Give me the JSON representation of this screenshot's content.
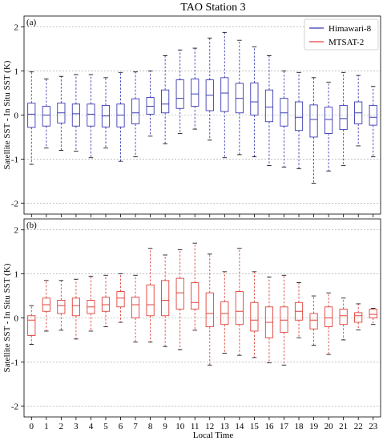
{
  "chart_data": [
    {
      "type": "box",
      "panel_label": "(a)",
      "title": "TAO Station 3",
      "xlabel": "",
      "ylabel": "Satellite SST - In Situ SST (K)",
      "ylim": [
        -2.25,
        2.25
      ],
      "yticks": [
        -2,
        -1,
        0,
        1,
        2
      ],
      "grid": "horizontal dashed",
      "legend": {
        "placement": "top-right",
        "entries": [
          {
            "name": "Himawari-8",
            "color": "#3b3bb5"
          },
          {
            "name": "MTSAT-2",
            "color": "#e0413a"
          }
        ]
      },
      "categories": [
        "0",
        "1",
        "2",
        "3",
        "4",
        "5",
        "6",
        "7",
        "8",
        "9",
        "10",
        "11",
        "12",
        "13",
        "14",
        "15",
        "16",
        "17",
        "18",
        "19",
        "20",
        "21",
        "22",
        "23"
      ],
      "series": [
        {
          "name": "Himawari-8",
          "color": "#3b3bb5",
          "boxes": [
            {
              "low": -1.12,
              "q1": -0.28,
              "median": 0.02,
              "q3": 0.27,
              "high": 0.98
            },
            {
              "low": -0.75,
              "q1": -0.25,
              "median": 0.0,
              "q3": 0.2,
              "high": 0.82
            },
            {
              "low": -0.8,
              "q1": -0.18,
              "median": 0.05,
              "q3": 0.27,
              "high": 0.88
            },
            {
              "low": -0.82,
              "q1": -0.25,
              "median": 0.03,
              "q3": 0.25,
              "high": 0.92
            },
            {
              "low": -0.97,
              "q1": -0.25,
              "median": 0.02,
              "q3": 0.25,
              "high": 0.92
            },
            {
              "low": -0.75,
              "q1": -0.27,
              "median": -0.02,
              "q3": 0.22,
              "high": 0.85
            },
            {
              "low": -1.05,
              "q1": -0.27,
              "median": 0.0,
              "q3": 0.25,
              "high": 0.97
            },
            {
              "low": -0.95,
              "q1": -0.2,
              "median": 0.05,
              "q3": 0.37,
              "high": 0.98
            },
            {
              "low": -0.48,
              "q1": 0.02,
              "median": 0.2,
              "q3": 0.4,
              "high": 1.0
            },
            {
              "low": -0.65,
              "q1": 0.05,
              "median": 0.25,
              "q3": 0.57,
              "high": 1.35
            },
            {
              "low": -0.42,
              "q1": 0.15,
              "median": 0.38,
              "q3": 0.8,
              "high": 1.48
            },
            {
              "low": -0.32,
              "q1": 0.2,
              "median": 0.48,
              "q3": 0.82,
              "high": 1.52
            },
            {
              "low": -0.57,
              "q1": 0.1,
              "median": 0.45,
              "q3": 0.8,
              "high": 1.75
            },
            {
              "low": -0.97,
              "q1": 0.08,
              "median": 0.5,
              "q3": 0.85,
              "high": 1.88
            },
            {
              "low": -0.9,
              "q1": 0.05,
              "median": 0.38,
              "q3": 0.72,
              "high": 1.7
            },
            {
              "low": -0.95,
              "q1": 0.0,
              "median": 0.3,
              "q3": 0.73,
              "high": 1.55
            },
            {
              "low": -1.15,
              "q1": -0.15,
              "median": 0.18,
              "q3": 0.57,
              "high": 1.35
            },
            {
              "low": -1.18,
              "q1": -0.25,
              "median": 0.05,
              "q3": 0.38,
              "high": 1.0
            },
            {
              "low": -1.22,
              "q1": -0.35,
              "median": -0.05,
              "q3": 0.3,
              "high": 0.97
            },
            {
              "low": -1.55,
              "q1": -0.5,
              "median": -0.1,
              "q3": 0.23,
              "high": 0.85
            },
            {
              "low": -1.27,
              "q1": -0.42,
              "median": -0.1,
              "q3": 0.18,
              "high": 0.75
            },
            {
              "low": -1.15,
              "q1": -0.33,
              "median": -0.08,
              "q3": 0.22,
              "high": 0.97
            },
            {
              "low": -0.7,
              "q1": -0.2,
              "median": 0.05,
              "q3": 0.3,
              "high": 0.9
            },
            {
              "low": -0.95,
              "q1": -0.23,
              "median": -0.05,
              "q3": 0.22,
              "high": 0.65
            }
          ]
        }
      ]
    },
    {
      "type": "box",
      "panel_label": "(b)",
      "xlabel": "Local Time",
      "ylabel": "Satellite SST - In Situ SST (K)",
      "ylim": [
        -2.25,
        2.25
      ],
      "yticks": [
        -2,
        -1,
        0,
        1,
        2
      ],
      "grid": "horizontal dashed",
      "categories": [
        "0",
        "1",
        "2",
        "3",
        "4",
        "5",
        "6",
        "7",
        "8",
        "9",
        "10",
        "11",
        "12",
        "13",
        "14",
        "15",
        "16",
        "17",
        "18",
        "19",
        "20",
        "21",
        "22",
        "23"
      ],
      "series": [
        {
          "name": "MTSAT-2",
          "color": "#e0413a",
          "boxes": [
            {
              "low": -0.6,
              "q1": -0.4,
              "median": -0.05,
              "q3": 0.05,
              "high": 0.28
            },
            {
              "low": -0.3,
              "q1": 0.15,
              "median": 0.3,
              "q3": 0.45,
              "high": 0.85
            },
            {
              "low": -0.28,
              "q1": 0.1,
              "median": 0.28,
              "q3": 0.4,
              "high": 0.85
            },
            {
              "low": -0.48,
              "q1": 0.05,
              "median": 0.28,
              "q3": 0.45,
              "high": 0.88
            },
            {
              "low": -0.3,
              "q1": 0.1,
              "median": 0.25,
              "q3": 0.4,
              "high": 0.95
            },
            {
              "low": -0.2,
              "q1": 0.15,
              "median": 0.3,
              "q3": 0.47,
              "high": 0.97
            },
            {
              "low": -0.1,
              "q1": 0.25,
              "median": 0.45,
              "q3": 0.6,
              "high": 1.0
            },
            {
              "low": -0.55,
              "q1": 0.0,
              "median": 0.3,
              "q3": 0.47,
              "high": 0.97
            },
            {
              "low": -0.55,
              "q1": 0.05,
              "median": 0.3,
              "q3": 0.75,
              "high": 1.58
            },
            {
              "low": -0.65,
              "q1": 0.05,
              "median": 0.4,
              "q3": 0.85,
              "high": 1.43
            },
            {
              "low": -0.72,
              "q1": 0.2,
              "median": 0.57,
              "q3": 0.9,
              "high": 1.55
            },
            {
              "low": -0.28,
              "q1": 0.2,
              "median": 0.35,
              "q3": 0.8,
              "high": 1.7
            },
            {
              "low": -1.07,
              "q1": -0.2,
              "median": 0.1,
              "q3": 0.57,
              "high": 1.45
            },
            {
              "low": -0.8,
              "q1": -0.15,
              "median": 0.1,
              "q3": 0.37,
              "high": 1.05
            },
            {
              "low": -0.85,
              "q1": -0.15,
              "median": 0.15,
              "q3": 0.6,
              "high": 1.58
            },
            {
              "low": -0.9,
              "q1": -0.3,
              "median": -0.05,
              "q3": 0.35,
              "high": 1.05
            },
            {
              "low": -1.02,
              "q1": -0.45,
              "median": -0.1,
              "q3": 0.25,
              "high": 0.93
            },
            {
              "low": -1.07,
              "q1": -0.33,
              "median": -0.05,
              "q3": 0.25,
              "high": 0.97
            },
            {
              "low": -0.45,
              "q1": -0.05,
              "median": 0.15,
              "q3": 0.35,
              "high": 0.8
            },
            {
              "low": -0.62,
              "q1": -0.25,
              "median": -0.05,
              "q3": 0.1,
              "high": 0.5
            },
            {
              "low": -0.83,
              "q1": -0.2,
              "median": 0.0,
              "q3": 0.25,
              "high": 0.57
            },
            {
              "low": -0.5,
              "q1": -0.15,
              "median": 0.05,
              "q3": 0.2,
              "high": 0.45
            },
            {
              "low": -0.27,
              "q1": -0.1,
              "median": 0.05,
              "q3": 0.12,
              "high": 0.32
            },
            {
              "low": -0.15,
              "q1": 0.0,
              "median": 0.08,
              "q3": 0.2,
              "high": 0.22
            }
          ]
        }
      ]
    }
  ]
}
